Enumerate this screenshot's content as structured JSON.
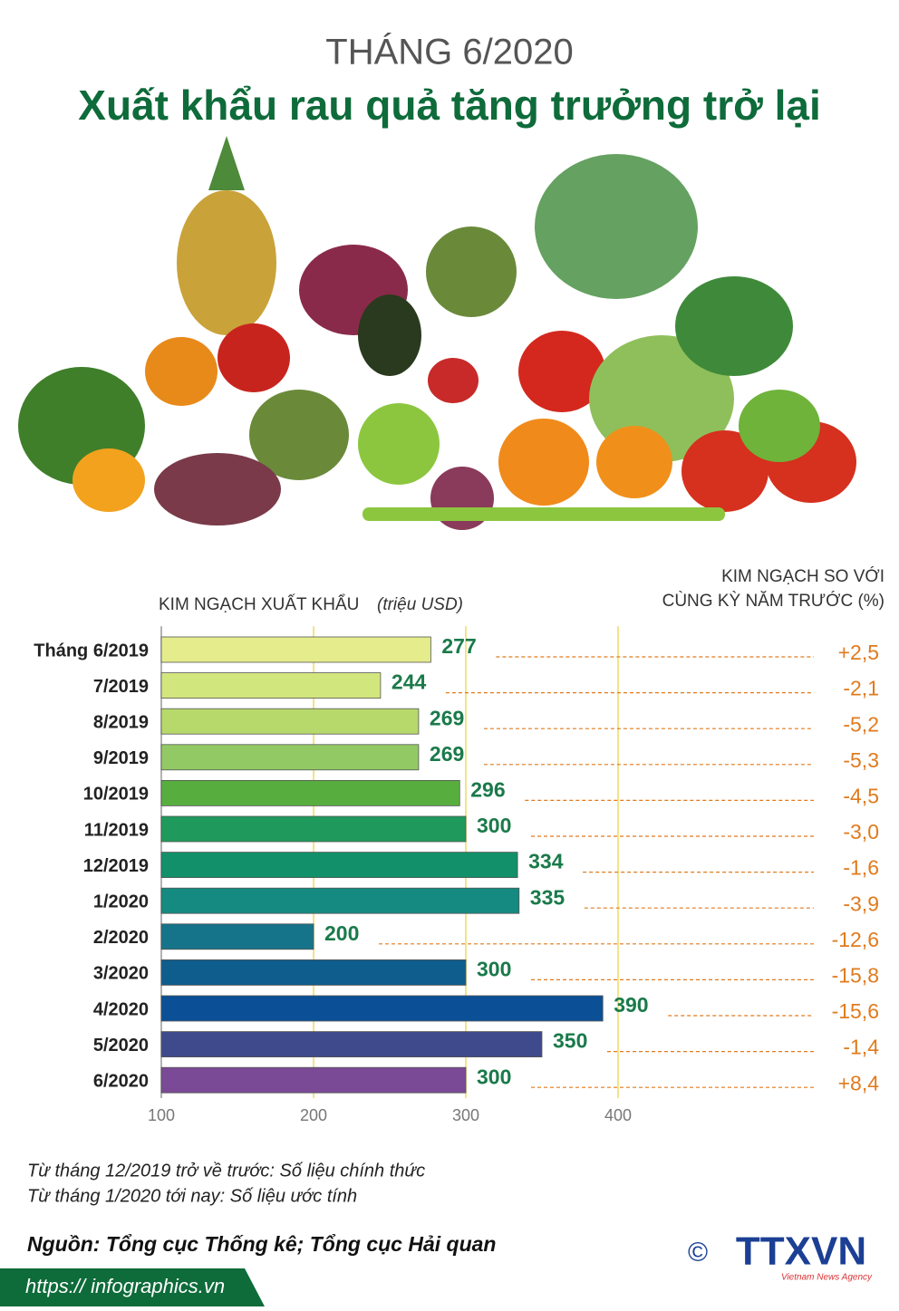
{
  "chart_data": {
    "type": "bar",
    "orientation": "horizontal",
    "title": "THÁNG 6/2020",
    "subtitle": "Xuất khẩu rau quả tăng trưởng trở lại",
    "x_label": "KIM NGẠCH XUẤT KHẨU",
    "x_unit": "(triệu USD)",
    "change_title": [
      "KIM NGẠCH SO VỚI",
      "CÙNG KỲ NĂM TRƯỚC (%)"
    ],
    "categories": [
      "Tháng 6/2019",
      "7/2019",
      "8/2019",
      "9/2019",
      "10/2019",
      "11/2019",
      "12/2019",
      "1/2020",
      "2/2020",
      "3/2020",
      "4/2020",
      "5/2020",
      "6/2020"
    ],
    "values": [
      277,
      244,
      269,
      269,
      296,
      300,
      334,
      335,
      200,
      300,
      390,
      350,
      300
    ],
    "colors": [
      "#e4ec8c",
      "#d2e67e",
      "#b7d96c",
      "#92c965",
      "#58ad3f",
      "#1f9a5c",
      "#12906a",
      "#148a80",
      "#16748a",
      "#0f5d8c",
      "#0b4f96",
      "#3f4a8c",
      "#7a4a96"
    ],
    "label_color": "#1a7a4a",
    "change": {
      "values": [
        2.5,
        -2.1,
        -5.2,
        -5.3,
        -4.5,
        -3.0,
        -1.6,
        -3.9,
        -12.6,
        -15.8,
        -15.6,
        -1.4,
        8.4
      ],
      "value_labels": [
        "+2,5",
        "-2,1",
        "-5,2",
        "-5,3",
        "-4,5",
        "-3,0",
        "-1,6",
        "-3,9",
        "-12,6",
        "-15,8",
        "-15,6",
        "-1,4",
        "+8,4"
      ],
      "color": "#e07b1e"
    },
    "xlim": [
      100,
      400
    ],
    "xticks": [
      100,
      200,
      300,
      400
    ],
    "grid": true
  },
  "notes": [
    "Từ tháng 12/2019 trở về trước: Số liệu chính thức",
    "Từ tháng 1/2020 tới nay: Số liệu ước tính"
  ],
  "source": "Nguồn: Tổng cục Thống kê; Tổng cục Hải quan",
  "url": "https:// infographics.vn",
  "logo": {
    "mark": "©",
    "name": "TTXVN",
    "tagline": "Vietnam News Agency"
  }
}
